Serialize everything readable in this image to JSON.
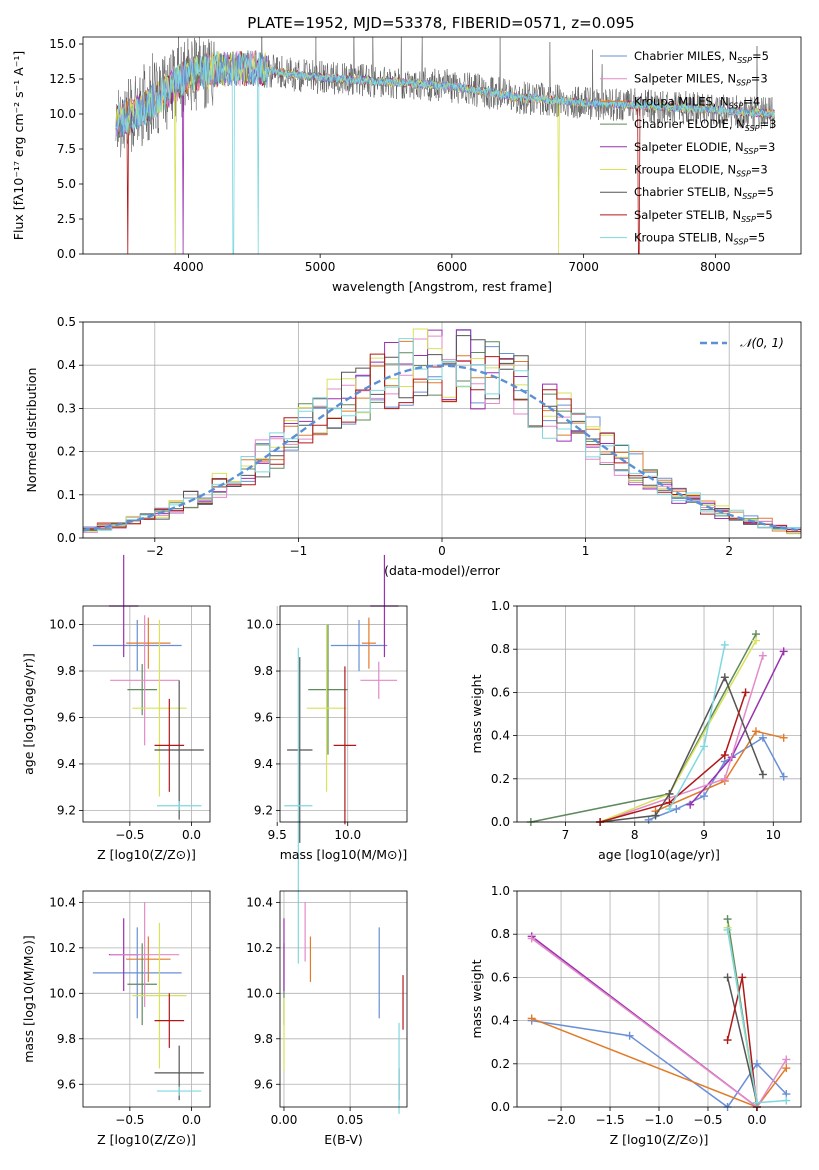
{
  "title": "PLATE=1952, MJD=53378, FIBERID=0571, z=0.095",
  "colors": {
    "c1": "#6a8fd6",
    "c2": "#e07b2a",
    "c3": "#5f8a5f",
    "c4": "#9b30b0",
    "c5": "#e38ac8",
    "c6": "#d8e25a",
    "c7": "#555555",
    "c8": "#b01818",
    "c9": "#7fd8e0",
    "ref": "#5b8fd6",
    "grid": "#b0b0b0"
  },
  "legend_entries": [
    {
      "base": "Chabrier MILES, N",
      "sub": "SSP",
      "suffix": "=5",
      "color": "c1"
    },
    {
      "base": "Salpeter MILES, N",
      "sub": "SSP",
      "suffix": "=3",
      "color": "c5"
    },
    {
      "base": "Kroupa MILES, N",
      "sub": "SSP",
      "suffix": "=4",
      "color": "c2"
    },
    {
      "base": "Chabrier ELODIE, N",
      "sub": "SSP",
      "suffix": "=3",
      "color": "c3"
    },
    {
      "base": "Salpeter ELODIE, N",
      "sub": "SSP",
      "suffix": "=3",
      "color": "c4"
    },
    {
      "base": "Kroupa ELODIE, N",
      "sub": "SSP",
      "suffix": "=3",
      "color": "c6"
    },
    {
      "base": "Chabrier STELIB, N",
      "sub": "SSP",
      "suffix": "=5",
      "color": "c7"
    },
    {
      "base": "Salpeter STELIB, N",
      "sub": "SSP",
      "suffix": "=5",
      "color": "c8"
    },
    {
      "base": "Kroupa STELIB, N",
      "sub": "SSP",
      "suffix": "=5",
      "color": "c9"
    }
  ],
  "chart_data": [
    {
      "id": "spectrum",
      "type": "line",
      "xlabel": "wavelength [Angstrom, rest frame]",
      "ylabel": "Flux [fλ10⁻¹⁷ erg cm⁻² s⁻¹ A⁻¹]",
      "xlim": [
        3200,
        8650
      ],
      "ylim": [
        0,
        15.5
      ],
      "xticks": [
        4000,
        5000,
        6000,
        7000,
        8000
      ],
      "yticks": [
        0.0,
        2.5,
        5.0,
        7.5,
        10.0,
        12.5,
        15.0
      ],
      "x_range": [
        3450,
        8450
      ],
      "continuum_x": [
        3450,
        3600,
        3800,
        4000,
        4200,
        4500,
        4800,
        5000,
        5500,
        6000,
        6500,
        7000,
        7500,
        8000,
        8450
      ],
      "continuum_y": [
        9.5,
        10.0,
        11.3,
        12.8,
        13.2,
        13.3,
        12.8,
        12.6,
        12.3,
        12.0,
        11.2,
        10.8,
        10.6,
        10.3,
        10.0
      ],
      "dropouts": [
        {
          "x": 3540,
          "series": "c8"
        },
        {
          "x": 3900,
          "series": "c6"
        },
        {
          "x": 3960,
          "series": "c4"
        },
        {
          "x": 4340,
          "series": "c9"
        },
        {
          "x": 4530,
          "series": "c9"
        },
        {
          "x": 6810,
          "series": "c6"
        },
        {
          "x": 7420,
          "series": "c8"
        }
      ]
    },
    {
      "id": "residual_hist",
      "type": "line",
      "xlabel": "(data-model)/error",
      "ylabel": "Normed distribution",
      "xlim": [
        -2.5,
        2.5
      ],
      "ylim": [
        0,
        0.5
      ],
      "xticks": [
        -2,
        -1,
        0,
        1,
        2
      ],
      "yticks": [
        0.0,
        0.1,
        0.2,
        0.3,
        0.4,
        0.5
      ],
      "bin_width": 0.1,
      "series": [
        {
          "name": "𝒩(0, 1)",
          "type": "gaussian",
          "mean": 0,
          "sigma": 1,
          "color": "ref"
        }
      ],
      "legend": "top-right"
    },
    {
      "id": "age_vs_Z",
      "type": "scatter",
      "xlabel": "Z [log10(Z/Z⊙)]",
      "ylabel": "age  [log10(age/yr)]",
      "xlim": [
        -0.88,
        0.15
      ],
      "ylim": [
        9.15,
        10.08
      ],
      "xticks": [
        -0.5,
        0.0
      ],
      "yticks": [
        9.2,
        9.4,
        9.6,
        9.8,
        10.0
      ],
      "points": [
        {
          "x": -0.44,
          "y": 9.91,
          "xerr": 0.36,
          "yerr": 0.11,
          "color": "c1"
        },
        {
          "x": -0.35,
          "y": 9.92,
          "xerr": 0.18,
          "yerr": 0.11,
          "color": "c2"
        },
        {
          "x": -0.4,
          "y": 9.72,
          "xerr": 0.12,
          "yerr": 0.11,
          "color": "c3"
        },
        {
          "x": -0.55,
          "y": 10.08,
          "xerr": 0.12,
          "yerr": 0.22,
          "color": "c4"
        },
        {
          "x": -0.38,
          "y": 9.76,
          "xerr": 0.28,
          "yerr": 0.28,
          "color": "c5"
        },
        {
          "x": -0.26,
          "y": 9.64,
          "xerr": 0.22,
          "yerr": 0.38,
          "color": "c6"
        },
        {
          "x": -0.1,
          "y": 9.46,
          "xerr": 0.2,
          "yerr": 0.3,
          "color": "c7"
        },
        {
          "x": -0.18,
          "y": 9.48,
          "xerr": 0.12,
          "yerr": 0.2,
          "color": "c8"
        },
        {
          "x": -0.1,
          "y": 9.22,
          "xerr": 0.18,
          "yerr": 0.02,
          "color": "c9"
        }
      ]
    },
    {
      "id": "age_vs_mass",
      "type": "scatter",
      "xlabel": "mass [log10(M/M⊙)]",
      "ylabel": "",
      "xlim": [
        9.52,
        10.42
      ],
      "ylim": [
        9.15,
        10.08
      ],
      "xticks": [
        9.5,
        10.0
      ],
      "yticks": [
        9.2,
        9.4,
        9.6,
        9.8,
        10.0
      ],
      "points": [
        {
          "x": 10.08,
          "y": 9.91,
          "xerr": 0.2,
          "yerr": 0.11,
          "color": "c1"
        },
        {
          "x": 10.15,
          "y": 9.92,
          "xerr": 0.05,
          "yerr": 0.11,
          "color": "c2"
        },
        {
          "x": 9.86,
          "y": 9.72,
          "xerr": 0.14,
          "yerr": 0.28,
          "color": "c3"
        },
        {
          "x": 10.26,
          "y": 10.08,
          "xerr": 0.1,
          "yerr": 0.22,
          "color": "c4"
        },
        {
          "x": 10.22,
          "y": 9.76,
          "xerr": 0.13,
          "yerr": 0.08,
          "color": "c5"
        },
        {
          "x": 9.85,
          "y": 9.64,
          "xerr": 0.14,
          "yerr": 0.36,
          "color": "c6"
        },
        {
          "x": 9.66,
          "y": 9.46,
          "xerr": 0.09,
          "yerr": 0.4,
          "color": "c7"
        },
        {
          "x": 9.98,
          "y": 9.48,
          "xerr": 0.08,
          "yerr": 0.34,
          "color": "c8"
        },
        {
          "x": 9.65,
          "y": 9.22,
          "xerr": 0.1,
          "yerr": 0.68,
          "color": "c9"
        }
      ]
    },
    {
      "id": "mass_weight_vs_age",
      "type": "line",
      "xlabel": "age  [log10(age/yr)]",
      "ylabel": "mass weight",
      "xlim": [
        6.3,
        10.4
      ],
      "ylim": [
        0,
        1.0
      ],
      "xticks": [
        7,
        8,
        9,
        10
      ],
      "yticks": [
        0.0,
        0.2,
        0.4,
        0.6,
        0.8,
        1.0
      ],
      "series": [
        {
          "color": "c1",
          "x": [
            8.2,
            8.6,
            9.0,
            9.3,
            9.85,
            10.15
          ],
          "y": [
            0.01,
            0.06,
            0.12,
            0.28,
            0.39,
            0.21
          ]
        },
        {
          "color": "c2",
          "x": [
            8.3,
            9.3,
            9.75,
            10.15
          ],
          "y": [
            0.05,
            0.19,
            0.42,
            0.39
          ]
        },
        {
          "color": "c3",
          "x": [
            6.5,
            8.5,
            9.75
          ],
          "y": [
            0.0,
            0.13,
            0.87
          ]
        },
        {
          "color": "c4",
          "x": [
            8.8,
            9.4,
            10.15
          ],
          "y": [
            0.08,
            0.3,
            0.79
          ]
        },
        {
          "color": "c5",
          "x": [
            7.5,
            9.3,
            9.85
          ],
          "y": [
            0.0,
            0.2,
            0.77
          ]
        },
        {
          "color": "c6",
          "x": [
            7.5,
            8.5,
            9.75
          ],
          "y": [
            0.0,
            0.13,
            0.84
          ]
        },
        {
          "color": "c7",
          "x": [
            7.5,
            8.3,
            8.5,
            9.3,
            9.85
          ],
          "y": [
            0.0,
            0.03,
            0.13,
            0.67,
            0.22
          ]
        },
        {
          "color": "c8",
          "x": [
            7.5,
            8.5,
            9.3,
            9.6
          ],
          "y": [
            0.0,
            0.09,
            0.31,
            0.6
          ]
        },
        {
          "color": "c9",
          "x": [
            8.5,
            9.0,
            9.3
          ],
          "y": [
            0.06,
            0.35,
            0.82
          ]
        }
      ]
    },
    {
      "id": "mass_vs_Z",
      "type": "scatter",
      "xlabel": "Z [log10(Z/Z⊙)]",
      "ylabel": "mass [log10(M/M⊙)]",
      "xlim": [
        -0.88,
        0.15
      ],
      "ylim": [
        9.5,
        10.45
      ],
      "xticks": [
        -0.5,
        0.0
      ],
      "yticks": [
        9.6,
        9.8,
        10.0,
        10.2,
        10.4
      ],
      "points": [
        {
          "x": -0.44,
          "y": 10.09,
          "xerr": 0.36,
          "yerr": 0.2,
          "color": "c1"
        },
        {
          "x": -0.35,
          "y": 10.15,
          "xerr": 0.18,
          "yerr": 0.1,
          "color": "c2"
        },
        {
          "x": -0.4,
          "y": 10.04,
          "xerr": 0.12,
          "yerr": 0.18,
          "color": "c3"
        },
        {
          "x": -0.55,
          "y": 10.17,
          "xerr": 0.12,
          "yerr": 0.16,
          "color": "c4"
        },
        {
          "x": -0.38,
          "y": 10.17,
          "xerr": 0.28,
          "yerr": 0.23,
          "color": "c5"
        },
        {
          "x": -0.26,
          "y": 9.99,
          "xerr": 0.22,
          "yerr": 0.32,
          "color": "c6"
        },
        {
          "x": -0.1,
          "y": 9.65,
          "xerr": 0.2,
          "yerr": 0.12,
          "color": "c7"
        },
        {
          "x": -0.18,
          "y": 9.88,
          "xerr": 0.12,
          "yerr": 0.12,
          "color": "c8"
        },
        {
          "x": -0.1,
          "y": 9.57,
          "xerr": 0.18,
          "yerr": 0.02,
          "color": "c9"
        }
      ]
    },
    {
      "id": "mass_vs_EBV",
      "type": "scatter",
      "xlabel": "E(B-V)",
      "ylabel": "",
      "xlim": [
        -0.003,
        0.093
      ],
      "ylim": [
        9.5,
        10.45
      ],
      "xticks": [
        0.0,
        0.05
      ],
      "yticks": [
        9.6,
        9.8,
        10.0,
        10.2,
        10.4
      ],
      "points": [
        {
          "x": 0.072,
          "y": 10.09,
          "yerr": 0.2,
          "color": "c1"
        },
        {
          "x": 0.02,
          "y": 10.15,
          "yerr": 0.1,
          "color": "c2"
        },
        {
          "x": 0.0,
          "y": 10.04,
          "yerr": 0.18,
          "color": "c3"
        },
        {
          "x": 0.0,
          "y": 10.17,
          "yerr": 0.16,
          "color": "c4"
        },
        {
          "x": 0.016,
          "y": 10.27,
          "yerr": 0.13,
          "color": "c5"
        },
        {
          "x": 0.0,
          "y": 9.82,
          "yerr": 0.16,
          "color": "c6"
        },
        {
          "x": 0.087,
          "y": 9.6,
          "yerr": 0.07,
          "color": "c7"
        },
        {
          "x": 0.09,
          "y": 9.96,
          "yerr": 0.12,
          "color": "c8"
        },
        {
          "x": 0.087,
          "y": 9.67,
          "yerr": 0.2,
          "color": "c9"
        }
      ]
    },
    {
      "id": "mass_weight_vs_Z",
      "type": "line",
      "xlabel": "Z [log10(Z/Z⊙)]",
      "ylabel": "mass weight",
      "xlim": [
        -2.45,
        0.45
      ],
      "ylim": [
        0,
        1.0
      ],
      "xticks": [
        -2.0,
        -1.5,
        -1.0,
        -0.5,
        0.0
      ],
      "yticks": [
        0.0,
        0.2,
        0.4,
        0.6,
        0.8,
        1.0
      ],
      "series": [
        {
          "color": "c1",
          "x": [
            -2.3,
            -1.3,
            -0.3,
            0.0,
            0.3
          ],
          "y": [
            0.4,
            0.33,
            0.0,
            0.2,
            0.06
          ]
        },
        {
          "color": "c2",
          "x": [
            -2.3,
            0.0,
            0.3
          ],
          "y": [
            0.41,
            0.0,
            0.18
          ]
        },
        {
          "color": "c3",
          "x": [
            -0.3,
            0.0
          ],
          "y": [
            0.87,
            0.0
          ]
        },
        {
          "color": "c4",
          "x": [
            -2.3,
            0.0
          ],
          "y": [
            0.79,
            0.0
          ]
        },
        {
          "color": "c5",
          "x": [
            -2.3,
            0.0,
            0.3
          ],
          "y": [
            0.78,
            0.0,
            0.22
          ]
        },
        {
          "color": "c6",
          "x": [
            -0.3,
            0.0
          ],
          "y": [
            0.83,
            0.0
          ]
        },
        {
          "color": "c7",
          "x": [
            -0.3,
            0.0
          ],
          "y": [
            0.6,
            0.02
          ]
        },
        {
          "color": "c8",
          "x": [
            -0.3,
            -0.15,
            0.0
          ],
          "y": [
            0.31,
            0.6,
            0.0
          ]
        },
        {
          "color": "c9",
          "x": [
            -0.3,
            0.0,
            0.3
          ],
          "y": [
            0.82,
            0.02,
            0.03
          ]
        }
      ]
    }
  ]
}
